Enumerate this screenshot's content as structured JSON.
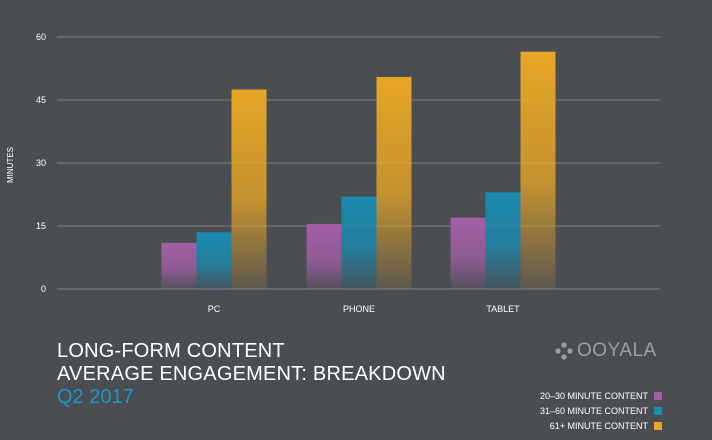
{
  "chart_data": {
    "type": "bar",
    "categories": [
      "PC",
      "PHONE",
      "TABLET"
    ],
    "series": [
      {
        "name": "20–30 MINUTE CONTENT",
        "values": [
          11,
          15.5,
          17
        ],
        "color": "#a35fa6"
      },
      {
        "name": "31–60 MINUTE CONTENT",
        "values": [
          13.5,
          22,
          23
        ],
        "color": "#1a8bb0"
      },
      {
        "name": "61+ MINUTE CONTENT",
        "values": [
          47.5,
          50.5,
          56.5
        ],
        "color": "#e7a626"
      }
    ],
    "ylabel": "MINUTES",
    "yticks": [
      0,
      15,
      30,
      45,
      60
    ],
    "ylim": [
      0,
      60
    ],
    "grid": true,
    "legend_position": "bottom-right",
    "title": "LONG-FORM CONTENT",
    "subtitle": "AVERAGE ENGAGEMENT: BREAKDOWN",
    "period": "Q2 2017"
  },
  "brand": {
    "name": "OOYALA"
  },
  "colors": {
    "background": "#4a4d52",
    "grid": "#7c7f84",
    "accent": "#1d97c4"
  }
}
